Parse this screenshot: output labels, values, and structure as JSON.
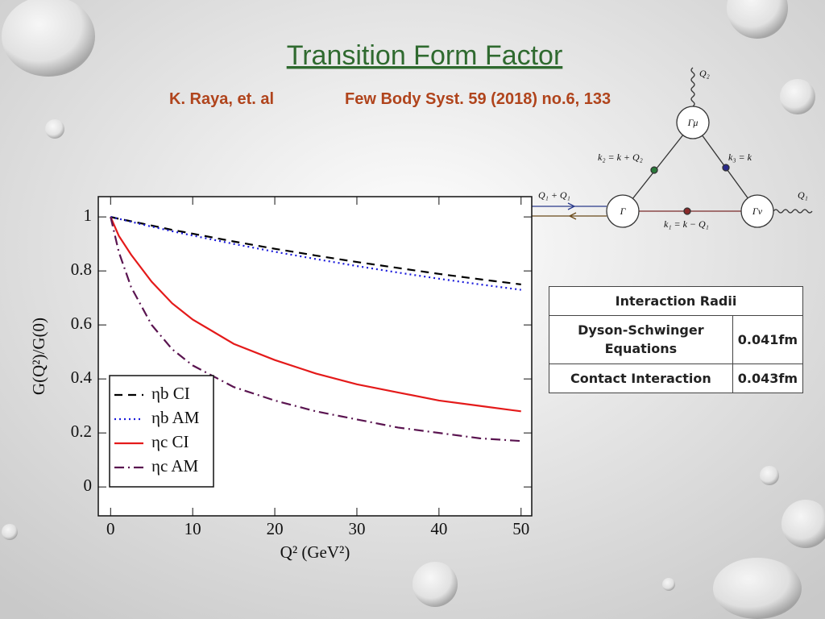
{
  "slide": {
    "title": "Transition Form Factor",
    "authors": "K. Raya, et. al",
    "reference": "Few Body Syst. 59 (2018) no.6, 133"
  },
  "chart_data": {
    "type": "line",
    "x_label": "Q² (GeV²)",
    "y_label": "G(Q²)/G(0)",
    "x": [
      0,
      1,
      2.5,
      5,
      7.5,
      10,
      15,
      20,
      25,
      30,
      35,
      40,
      45,
      50
    ],
    "series": [
      {
        "name": "ηb CI",
        "color": "#000000",
        "dash": "10 7",
        "values": [
          1,
          0.993,
          0.984,
          0.968,
          0.952,
          0.938,
          0.909,
          0.882,
          0.857,
          0.833,
          0.811,
          0.789,
          0.769,
          0.75
        ]
      },
      {
        "name": "ηb AM",
        "color": "#1a1adb",
        "dash": "2 4",
        "values": [
          1,
          0.993,
          0.982,
          0.964,
          0.947,
          0.931,
          0.9,
          0.871,
          0.844,
          0.818,
          0.794,
          0.771,
          0.75,
          0.73
        ]
      },
      {
        "name": "ηc CI",
        "color": "#e41a1a",
        "dash": "none",
        "values": [
          1,
          0.93,
          0.86,
          0.76,
          0.68,
          0.62,
          0.53,
          0.47,
          0.42,
          0.38,
          0.35,
          0.32,
          0.3,
          0.28
        ]
      },
      {
        "name": "ηc AM",
        "color": "#5a1450",
        "dash": "12 5 2 5",
        "values": [
          1,
          0.87,
          0.74,
          0.6,
          0.51,
          0.45,
          0.37,
          0.32,
          0.28,
          0.25,
          0.22,
          0.2,
          0.18,
          0.17
        ]
      }
    ],
    "xlim": [
      -1.5,
      51.3
    ],
    "ylim": [
      -0.107,
      1.075
    ],
    "xticks": [
      0,
      10,
      20,
      30,
      40,
      50
    ],
    "yticks": [
      0,
      0.2,
      0.4,
      0.6,
      0.8,
      1
    ]
  },
  "table": {
    "header": "Interaction Radii",
    "rows": [
      [
        "Dyson-Schwinger Equations",
        "0.041fm"
      ],
      [
        "Contact Interaction",
        "0.043fm"
      ]
    ]
  },
  "diagram": {
    "labels": {
      "q2": "Q₂",
      "gamma_mu": "Γμ",
      "k2": "k₂ = k + Q₂",
      "k3": "k₃ = k",
      "qin": "Q₁ + Q₁",
      "gamma": "Γ",
      "gamma_nu": "Γν",
      "q1": "Q₁",
      "k1": "k₁ = k − Q₁"
    }
  }
}
